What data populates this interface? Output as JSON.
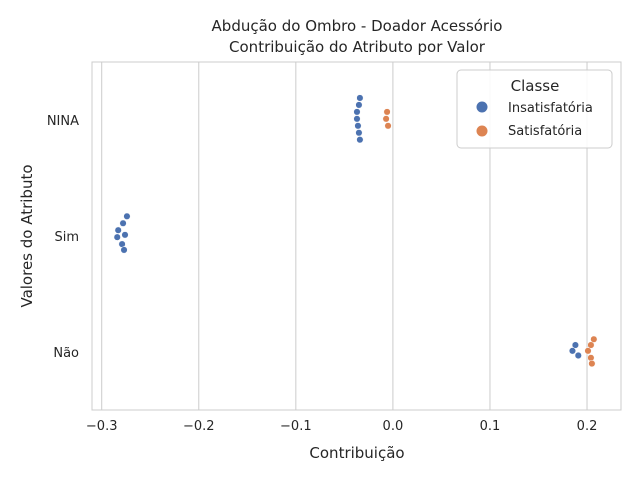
{
  "chart_data": {
    "type": "scatter",
    "title_lines": [
      "Abdução do Ombro - Doador Acessório",
      "Contribuição do Atributo por Valor"
    ],
    "xlabel": "Contribuição",
    "ylabel": "Valores do Atributo",
    "xlim": [
      -0.31,
      0.235
    ],
    "xticks": [
      -0.3,
      -0.2,
      -0.1,
      0.0,
      0.1,
      0.2
    ],
    "xtick_labels": [
      "−0.3",
      "−0.2",
      "−0.1",
      "0.0",
      "0.1",
      "0.2"
    ],
    "categories": [
      "NINA",
      "Sim",
      "Não"
    ],
    "grid": "vertical",
    "legend": {
      "title": "Classe",
      "placement": "top-right",
      "entries": [
        {
          "name": "Insatisfatória",
          "color": "#4c72b0"
        },
        {
          "name": "Satisfatória",
          "color": "#dd8452"
        }
      ]
    },
    "series": [
      {
        "name": "Insatisfatória",
        "color": "#4c72b0",
        "points": [
          {
            "category": "NINA",
            "x": -0.034,
            "jitter": -0.19
          },
          {
            "category": "NINA",
            "x": -0.035,
            "jitter": -0.13
          },
          {
            "category": "NINA",
            "x": -0.037,
            "jitter": -0.07
          },
          {
            "category": "NINA",
            "x": -0.037,
            "jitter": -0.01
          },
          {
            "category": "NINA",
            "x": -0.036,
            "jitter": 0.05
          },
          {
            "category": "NINA",
            "x": -0.035,
            "jitter": 0.11
          },
          {
            "category": "NINA",
            "x": -0.034,
            "jitter": 0.17
          },
          {
            "category": "Sim",
            "x": -0.274,
            "jitter": -0.17
          },
          {
            "category": "Sim",
            "x": -0.278,
            "jitter": -0.11
          },
          {
            "category": "Sim",
            "x": -0.283,
            "jitter": -0.05
          },
          {
            "category": "Sim",
            "x": -0.276,
            "jitter": -0.01
          },
          {
            "category": "Sim",
            "x": -0.284,
            "jitter": 0.01
          },
          {
            "category": "Sim",
            "x": -0.279,
            "jitter": 0.07
          },
          {
            "category": "Sim",
            "x": -0.277,
            "jitter": 0.12
          },
          {
            "category": "Não",
            "x": 0.188,
            "jitter": -0.06
          },
          {
            "category": "Não",
            "x": 0.185,
            "jitter": -0.01
          },
          {
            "category": "Não",
            "x": 0.191,
            "jitter": 0.03
          }
        ]
      },
      {
        "name": "Satisfatória",
        "color": "#dd8452",
        "points": [
          {
            "category": "NINA",
            "x": -0.006,
            "jitter": -0.07
          },
          {
            "category": "NINA",
            "x": -0.007,
            "jitter": -0.01
          },
          {
            "category": "NINA",
            "x": -0.005,
            "jitter": 0.05
          },
          {
            "category": "Não",
            "x": 0.207,
            "jitter": -0.11
          },
          {
            "category": "Não",
            "x": 0.204,
            "jitter": -0.06
          },
          {
            "category": "Não",
            "x": 0.201,
            "jitter": -0.01
          },
          {
            "category": "Não",
            "x": 0.204,
            "jitter": 0.05
          },
          {
            "category": "Não",
            "x": 0.205,
            "jitter": 0.1
          }
        ]
      }
    ]
  }
}
